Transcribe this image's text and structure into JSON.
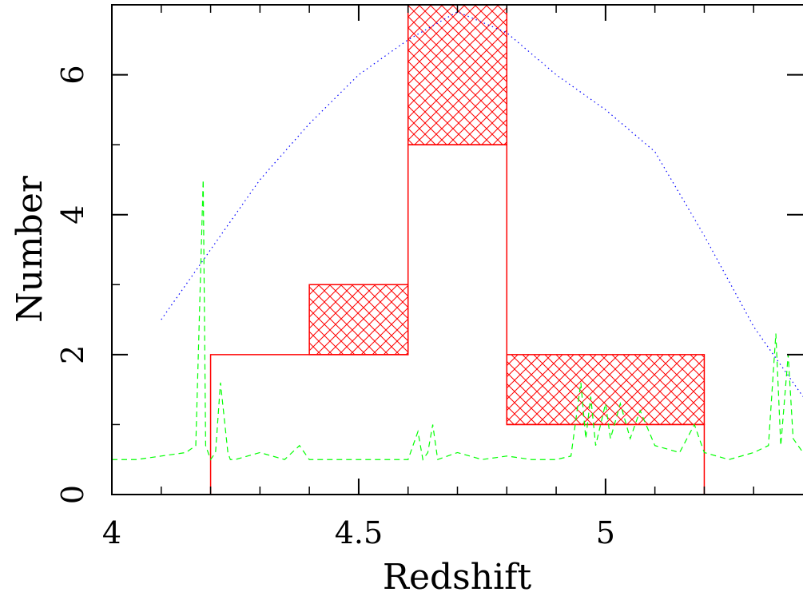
{
  "chart_data": {
    "type": "bar",
    "xlabel": "Redshift",
    "ylabel": "Number",
    "xlim": [
      4.0,
      5.4
    ],
    "ylim": [
      0,
      7.0
    ],
    "x_ticks": [
      {
        "value": 4.0,
        "label": "4"
      },
      {
        "value": 4.5,
        "label": "4.5"
      },
      {
        "value": 5.0,
        "label": "5"
      }
    ],
    "y_ticks": [
      {
        "value": 0,
        "label": "0"
      },
      {
        "value": 2,
        "label": "2"
      },
      {
        "value": 4,
        "label": "4"
      },
      {
        "value": 6,
        "label": "6"
      }
    ],
    "histogram": {
      "color": "#ff0000",
      "bins": [
        {
          "x0": 4.2,
          "x1": 4.4,
          "value": 2,
          "hatched_top": 2
        },
        {
          "x0": 4.4,
          "x1": 4.6,
          "value": 2,
          "hatched_top": 3
        },
        {
          "x0": 4.6,
          "x1": 4.8,
          "value": 5,
          "hatched_top": 7
        },
        {
          "x0": 4.8,
          "x1": 5.2,
          "value": 1,
          "hatched_top": 2
        }
      ]
    },
    "selection_curve": {
      "style": "dotted",
      "color": "#0000ff",
      "x": [
        4.1,
        4.2,
        4.3,
        4.4,
        4.5,
        4.6,
        4.7,
        4.8,
        4.9,
        5.0,
        5.1,
        5.2,
        5.3,
        5.4
      ],
      "y": [
        2.5,
        3.5,
        4.5,
        5.3,
        6.0,
        6.5,
        6.9,
        6.6,
        6.0,
        5.5,
        4.9,
        3.7,
        2.4,
        1.4
      ]
    },
    "noise_spectrum": {
      "style": "dashed",
      "color": "#00ff00",
      "x": [
        4.0,
        4.05,
        4.1,
        4.15,
        4.17,
        4.185,
        4.19,
        4.2,
        4.21,
        4.22,
        4.235,
        4.24,
        4.25,
        4.3,
        4.35,
        4.38,
        4.4,
        4.45,
        4.5,
        4.55,
        4.6,
        4.62,
        4.63,
        4.64,
        4.65,
        4.66,
        4.7,
        4.75,
        4.8,
        4.85,
        4.9,
        4.93,
        4.95,
        4.96,
        4.97,
        4.98,
        5.0,
        5.01,
        5.03,
        5.05,
        5.07,
        5.1,
        5.15,
        5.18,
        5.2,
        5.25,
        5.3,
        5.33,
        5.345,
        5.355,
        5.37,
        5.38,
        5.4
      ],
      "y": [
        0.5,
        0.5,
        0.55,
        0.6,
        0.7,
        4.5,
        0.7,
        0.5,
        0.6,
        1.6,
        0.6,
        0.5,
        0.5,
        0.6,
        0.5,
        0.7,
        0.5,
        0.5,
        0.5,
        0.5,
        0.5,
        0.9,
        0.5,
        0.6,
        1.0,
        0.5,
        0.6,
        0.5,
        0.55,
        0.5,
        0.5,
        0.55,
        1.6,
        0.8,
        1.4,
        0.7,
        1.3,
        0.8,
        1.3,
        0.8,
        1.2,
        0.7,
        0.6,
        1.0,
        0.6,
        0.5,
        0.6,
        0.7,
        2.3,
        0.7,
        2.0,
        0.8,
        0.6
      ]
    }
  }
}
